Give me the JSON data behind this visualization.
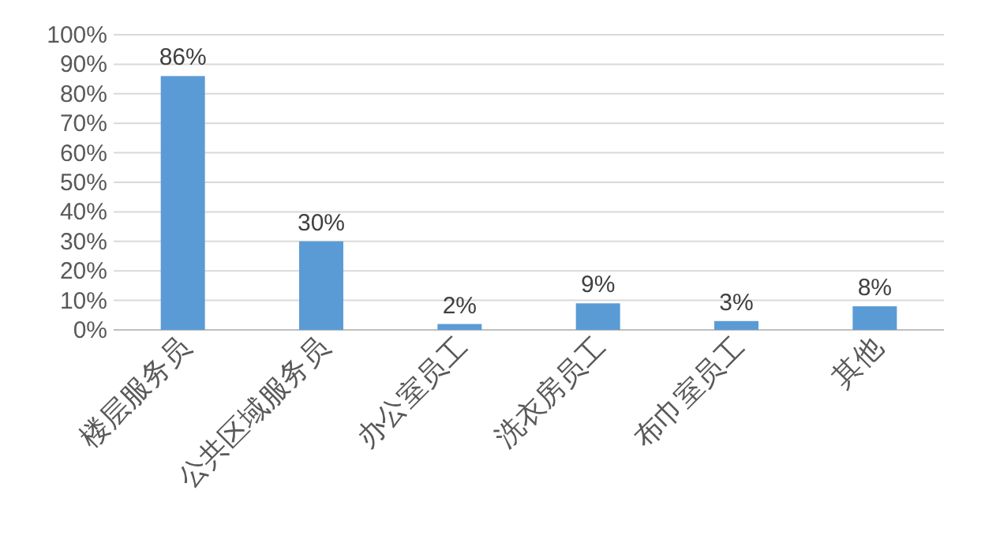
{
  "chart_data": {
    "type": "bar",
    "categories": [
      "楼层服务员",
      "公共区域服务员",
      "办公室员工",
      "洗衣房员工",
      "布巾室员工",
      "其他"
    ],
    "values": [
      86,
      30,
      2,
      9,
      3,
      8
    ],
    "value_labels": [
      "86%",
      "30%",
      "2%",
      "9%",
      "3%",
      "8%"
    ],
    "color": "#5b9bd5",
    "ylim": [
      0,
      100
    ],
    "yticks": [
      {
        "value": 0,
        "label": "0%"
      },
      {
        "value": 10,
        "label": "10%"
      },
      {
        "value": 20,
        "label": "20%"
      },
      {
        "value": 30,
        "label": "30%"
      },
      {
        "value": 40,
        "label": "40%"
      },
      {
        "value": 50,
        "label": "50%"
      },
      {
        "value": 60,
        "label": "60%"
      },
      {
        "value": 70,
        "label": "70%"
      },
      {
        "value": 80,
        "label": "80%"
      },
      {
        "value": 90,
        "label": "90%"
      },
      {
        "value": 100,
        "label": "100%"
      }
    ],
    "grid": "y"
  }
}
